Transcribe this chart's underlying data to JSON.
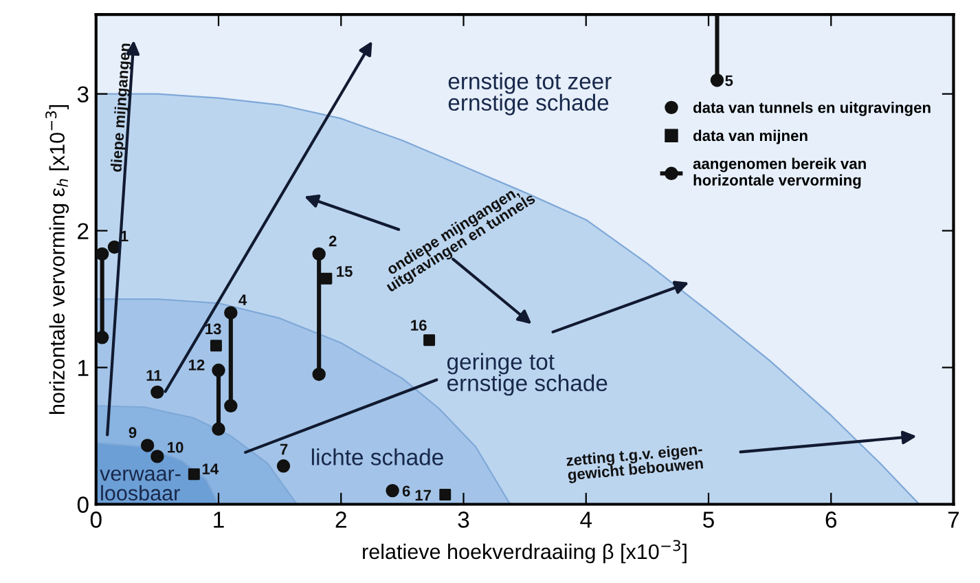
{
  "chart_data": {
    "type": "scatter",
    "xlabel": "relatieve hoekverdraaiing β [x10$^{−3}$]",
    "ylabel": "horizontale vervorming ε$_{h}$ [x10$^{−3}$]",
    "xlim": [
      0,
      7
    ],
    "ylim": [
      0,
      3.58
    ],
    "xticks": [
      0,
      1,
      2,
      3,
      4,
      5,
      6,
      7
    ],
    "yticks": [
      0,
      1,
      2,
      3
    ],
    "grid": false,
    "legend": "top right",
    "series": [
      {
        "type": "area",
        "color": "#bcd5ef",
        "x": [
          0,
          0.5,
          1,
          1.5,
          2,
          2.5,
          3,
          3.5,
          4,
          4.5,
          5,
          5.5,
          6,
          6.4,
          6.72
        ],
        "values": [
          3.0,
          3.0,
          2.97,
          2.92,
          2.82,
          2.66,
          2.47,
          2.28,
          2.08,
          1.76,
          1.41,
          1.05,
          0.65,
          0.3,
          0
        ]
      },
      {
        "type": "area",
        "color": "#a3c4e8",
        "x": [
          0,
          0.5,
          1,
          1.5,
          2,
          2.5,
          2.8,
          3.1,
          3.38
        ],
        "values": [
          1.5,
          1.5,
          1.47,
          1.36,
          1.18,
          0.92,
          0.7,
          0.42,
          0
        ]
      },
      {
        "type": "area",
        "color": "#89b3e0",
        "x": [
          0,
          0.4,
          0.8,
          1.1,
          1.4,
          1.64
        ],
        "values": [
          0.72,
          0.71,
          0.63,
          0.5,
          0.3,
          0
        ]
      },
      {
        "type": "area",
        "color": "#6c9fd6",
        "x": [
          0,
          0.4,
          0.7,
          0.9,
          1.0
        ],
        "values": [
          0.45,
          0.42,
          0.32,
          0.18,
          0
        ]
      },
      {
        "name": "data van tunnels en uitgravingen",
        "color": "#111111",
        "marker": "circle",
        "x": [
          0.15,
          0.5,
          0.42,
          0.5,
          1.53,
          2.42
        ],
        "values": [
          1.88,
          0.82,
          0.43,
          0.35,
          0.28,
          0.1
        ]
      },
      {
        "name": "data van mijnen",
        "color": "#111111",
        "marker": "square",
        "x": [
          0.98,
          1.88,
          2.72,
          0.8,
          2.85
        ],
        "values": [
          1.16,
          1.65,
          1.2,
          0.22,
          0.07
        ]
      },
      {
        "type": "line",
        "name": "aangenomen bereik van\nhorizontale vervorming",
        "color": "#111111",
        "marker": "circle",
        "x": [
          0.05,
          0.05
        ],
        "values": [
          1.22,
          1.83
        ]
      },
      {
        "type": "line",
        "color": "#111111",
        "marker": "circle",
        "x": [
          1.0,
          1.0
        ],
        "values": [
          0.55,
          0.98
        ]
      },
      {
        "type": "line",
        "color": "#111111",
        "marker": "circle",
        "x": [
          1.1,
          1.1
        ],
        "values": [
          0.72,
          1.4
        ]
      },
      {
        "type": "line",
        "color": "#111111",
        "marker": "circle",
        "x": [
          1.82,
          1.82
        ],
        "values": [
          0.95,
          1.83
        ]
      },
      {
        "type": "line",
        "color": "#111111",
        "marker": "circle",
        "x": [
          5.07,
          5.07
        ],
        "values": [
          3.1,
          3.58
        ]
      }
    ],
    "annotations": [
      "ernstige tot zeer\nernstige schade",
      {
        "text": "geringe tot\nernstige schade",
        "x": 1.22,
        "y": 0.38
      },
      "lichte schade",
      "verwaar-\nloosbaar",
      {
        "text": "1",
        "x": 0.15,
        "y": 1.88
      },
      {
        "text": "2",
        "x": 1.82,
        "y": 1.83
      },
      {
        "text": "4",
        "x": 1.1,
        "y": 1.4
      },
      {
        "text": "5",
        "x": 5.07,
        "y": 3.1
      },
      {
        "text": "6",
        "x": 2.42,
        "y": 0.1
      },
      {
        "text": "7",
        "x": 1.53,
        "y": 0.28
      },
      {
        "text": "9",
        "x": 0.42,
        "y": 0.43
      },
      {
        "text": "10",
        "x": 0.5,
        "y": 0.35
      },
      {
        "text": "11",
        "x": 0.5,
        "y": 0.82
      },
      {
        "text": "12",
        "x": 1.0,
        "y": 0.98
      },
      {
        "text": "13",
        "x": 0.98,
        "y": 1.16
      },
      {
        "text": "14",
        "x": 0.8,
        "y": 0.22
      },
      {
        "text": "15",
        "x": 1.88,
        "y": 1.65
      },
      {
        "text": "16",
        "x": 2.72,
        "y": 1.2
      },
      {
        "text": "17",
        "x": 2.85,
        "y": 0.07
      },
      "diepe mijngangen",
      "ondiepe mijngangen,\nuitgravingen en tunnels",
      "zetting t.g.v. eigen-\ngewicht bebouwen"
    ]
  }
}
